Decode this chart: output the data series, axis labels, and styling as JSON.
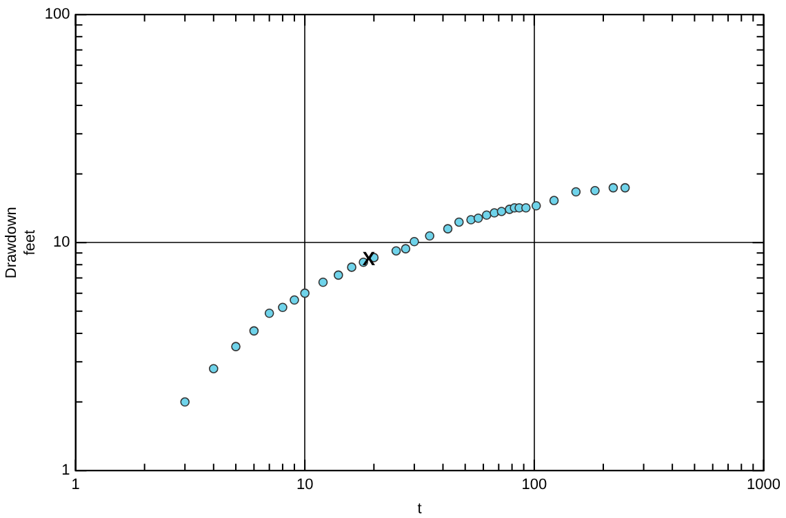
{
  "chart_data": {
    "type": "scatter",
    "xlabel": "t",
    "ylabel": "Drawdown feet",
    "x": [
      3,
      4,
      5,
      6,
      7,
      8,
      9,
      10,
      12,
      14,
      16,
      18,
      20,
      25,
      27.5,
      30,
      35,
      42,
      47,
      53,
      57,
      62,
      67,
      72,
      78,
      82,
      86,
      92,
      102,
      122,
      152,
      184,
      221,
      249
    ],
    "series": [
      {
        "color": "#6fd3ea",
        "values": [
          2.0,
          2.8,
          3.5,
          4.1,
          4.9,
          5.2,
          5.6,
          6.0,
          6.7,
          7.2,
          7.8,
          8.2,
          8.6,
          9.2,
          9.4,
          10.1,
          10.7,
          11.5,
          12.3,
          12.6,
          12.8,
          13.2,
          13.5,
          13.7,
          14.0,
          14.2,
          14.2,
          14.2,
          14.5,
          15.3,
          16.7,
          16.9,
          17.4,
          17.4
        ]
      }
    ],
    "annotations": [
      {
        "text": "X",
        "x": 19,
        "y": 8.4
      }
    ],
    "log": "xy",
    "marker": "circle",
    "grid": true,
    "legend": false,
    "xlim": [
      1,
      1000
    ],
    "ylim": [
      1,
      100
    ],
    "xticks": [
      1,
      {
        "value": 2,
        "label": null
      },
      {
        "value": 3,
        "label": null
      },
      {
        "value": 4,
        "label": null
      },
      {
        "value": 5,
        "label": null
      },
      {
        "value": 6,
        "label": null
      },
      {
        "value": 7,
        "label": null
      },
      {
        "value": 8,
        "label": null
      },
      {
        "value": 9,
        "label": null
      },
      10,
      {
        "value": 20,
        "label": null
      },
      {
        "value": 30,
        "label": null
      },
      {
        "value": 40,
        "label": null
      },
      {
        "value": 50,
        "label": null
      },
      {
        "value": 60,
        "label": null
      },
      {
        "value": 70,
        "label": null
      },
      {
        "value": 80,
        "label": null
      },
      {
        "value": 90,
        "label": null
      },
      100,
      {
        "value": 200,
        "label": null
      },
      {
        "value": 300,
        "label": null
      },
      {
        "value": 400,
        "label": null
      },
      {
        "value": 500,
        "label": null
      },
      {
        "value": 600,
        "label": null
      },
      {
        "value": 700,
        "label": null
      },
      {
        "value": 800,
        "label": null
      },
      {
        "value": 900,
        "label": null
      },
      1000
    ],
    "yticks": [
      1,
      {
        "value": 2,
        "label": null
      },
      {
        "value": 3,
        "label": null
      },
      {
        "value": 4,
        "label": null
      },
      {
        "value": 5,
        "label": null
      },
      {
        "value": 6,
        "label": null
      },
      {
        "value": 7,
        "label": null
      },
      {
        "value": 8,
        "label": null
      },
      {
        "value": 9,
        "label": null
      },
      10,
      {
        "value": 20,
        "label": null
      },
      {
        "value": 30,
        "label": null
      },
      {
        "value": 40,
        "label": null
      },
      {
        "value": 50,
        "label": null
      },
      {
        "value": 60,
        "label": null
      },
      {
        "value": 70,
        "label": null
      },
      {
        "value": 80,
        "label": null
      },
      {
        "value": 90,
        "label": null
      },
      100
    ]
  }
}
